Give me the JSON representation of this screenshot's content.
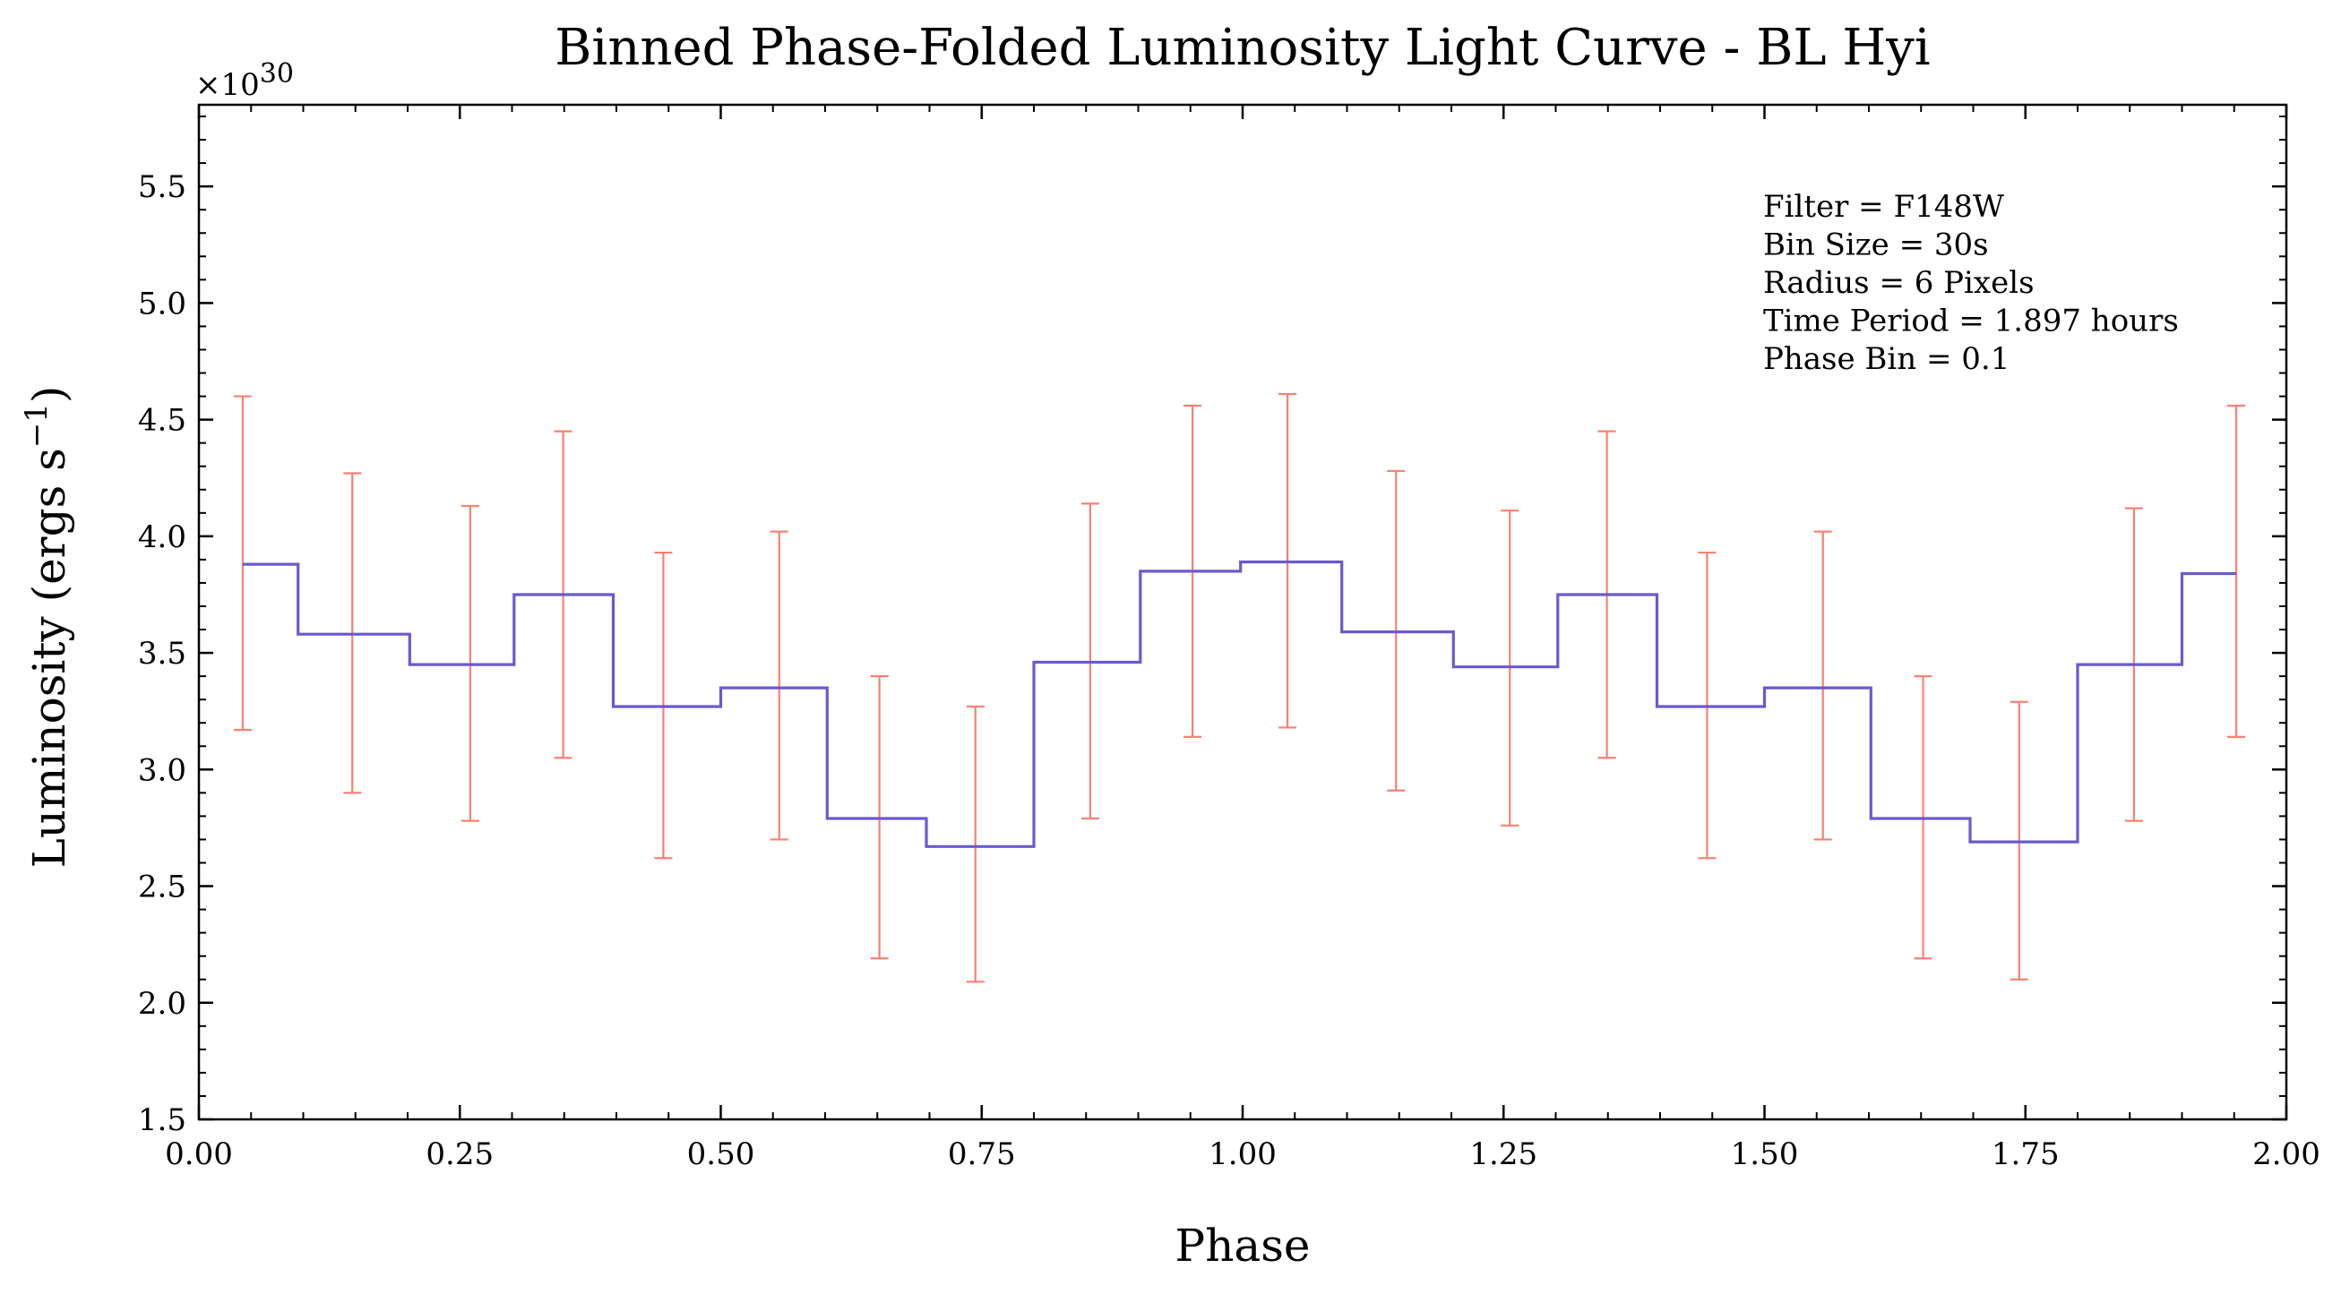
{
  "chart_data": {
    "type": "line",
    "style": "step",
    "title": "Binned Phase-Folded Luminosity Light Curve - BL Hyi",
    "xlabel": "Phase",
    "ylabel": "Luminosity (ergs s",
    "ylabel_sup": "−1",
    "ylabel_close": ")",
    "y_offset_text": "×10",
    "y_offset_exp": "30",
    "xlim": [
      0.0,
      2.0
    ],
    "ylim": [
      1.5,
      5.85
    ],
    "xticks": [
      0.0,
      0.25,
      0.5,
      0.75,
      1.0,
      1.25,
      1.5,
      1.75,
      2.0
    ],
    "xtick_labels": [
      "0.00",
      "0.25",
      "0.50",
      "0.75",
      "1.00",
      "1.25",
      "1.50",
      "1.75",
      "2.00"
    ],
    "yticks": [
      1.5,
      2.0,
      2.5,
      3.0,
      3.5,
      4.0,
      4.5,
      5.0,
      5.5
    ],
    "ytick_labels": [
      "1.5",
      "2.0",
      "2.5",
      "3.0",
      "3.5",
      "4.0",
      "4.5",
      "5.0",
      "5.5"
    ],
    "grid": false,
    "annotation_lines": [
      "Filter = F148W",
      "Bin Size = 30s",
      "Radius = 6 Pixels",
      "Time Period = 1.897 hours",
      "Phase Bin = 0.1"
    ],
    "series": [
      {
        "x": [
          0.042,
          0.147,
          0.26,
          0.349,
          0.445,
          0.556,
          0.652,
          0.744,
          0.854,
          0.952,
          1.043,
          1.147,
          1.256,
          1.349,
          1.445,
          1.556,
          1.652,
          1.744,
          1.854,
          1.952
        ],
        "y": [
          3.88,
          3.58,
          3.45,
          3.75,
          3.27,
          3.35,
          2.79,
          2.67,
          3.46,
          3.85,
          3.89,
          3.59,
          3.44,
          3.75,
          3.27,
          3.35,
          2.79,
          2.69,
          3.45,
          3.84
        ],
        "err_lower": [
          3.17,
          2.9,
          2.78,
          3.05,
          2.62,
          2.7,
          2.19,
          2.09,
          2.79,
          3.14,
          3.18,
          2.91,
          2.76,
          3.05,
          2.62,
          2.7,
          2.19,
          2.1,
          2.78,
          3.14
        ],
        "err_upper": [
          4.6,
          4.27,
          4.13,
          4.45,
          3.93,
          4.02,
          3.4,
          3.27,
          4.14,
          4.56,
          4.61,
          4.28,
          4.11,
          4.45,
          3.93,
          4.02,
          3.4,
          3.29,
          4.12,
          4.56
        ],
        "step_edges": [
          0.042,
          0.095,
          0.202,
          0.302,
          0.397,
          0.5,
          0.602,
          0.697,
          0.8,
          0.902,
          0.998,
          1.095,
          1.202,
          1.302,
          1.397,
          1.5,
          1.602,
          1.697,
          1.8,
          1.9,
          1.952
        ],
        "color": "#6a5acd",
        "error_color": "#fa8072"
      }
    ]
  }
}
